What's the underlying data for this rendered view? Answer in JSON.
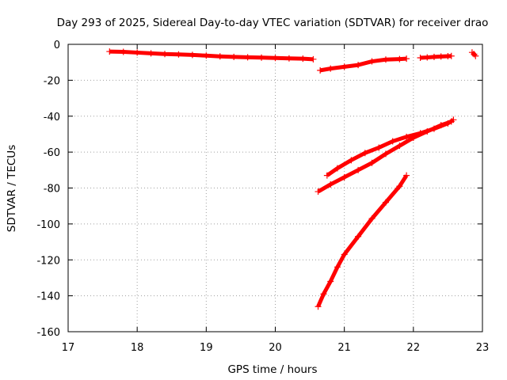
{
  "chart_data": {
    "type": "scatter",
    "title": "Day 293 of 2025, Sidereal Day-to-day VTEC variation (SDTVAR) for receiver drao",
    "xlabel": "GPS time / hours",
    "ylabel": "SDTVAR / TECUs",
    "xlim": [
      17,
      23
    ],
    "ylim": [
      -160,
      0
    ],
    "xticks": [
      "17",
      "18",
      "19",
      "20",
      "21",
      "22",
      "23"
    ],
    "yticks": [
      "0",
      "-20",
      "-40",
      "-60",
      "-80",
      "-100",
      "-120",
      "-140",
      "-160"
    ],
    "grid": true,
    "marker": "+",
    "color": "#ff0000",
    "series": [
      {
        "x": [
          17.6,
          17.8,
          18.0,
          18.2,
          18.4,
          18.6,
          18.8,
          19.0,
          19.2,
          19.4,
          19.6,
          19.8,
          20.0,
          20.2,
          20.4,
          20.55
        ],
        "y": [
          -4.0,
          -4.2,
          -4.6,
          -5.0,
          -5.4,
          -5.6,
          -5.9,
          -6.3,
          -6.7,
          -7.0,
          -7.2,
          -7.4,
          -7.6,
          -7.8,
          -8.0,
          -8.3
        ]
      },
      {
        "x": [
          20.65,
          20.8,
          21.0,
          21.2,
          21.4,
          21.6,
          21.8,
          21.9
        ],
        "y": [
          -14.5,
          -13.5,
          -12.5,
          -11.5,
          -9.5,
          -8.5,
          -8.2,
          -8.0
        ]
      },
      {
        "x": [
          22.1,
          22.2,
          22.3,
          22.4,
          22.5,
          22.55
        ],
        "y": [
          -7.5,
          -7.3,
          -7.0,
          -6.8,
          -6.6,
          -6.5
        ]
      },
      {
        "x": [
          22.85,
          22.88,
          22.9
        ],
        "y": [
          -4.5,
          -5.5,
          -6.5
        ]
      },
      {
        "x": [
          20.62,
          20.8,
          21.0,
          21.2,
          21.4,
          21.6,
          21.8,
          22.0,
          22.2,
          22.4,
          22.55
        ],
        "y": [
          -82.0,
          -78.0,
          -74.0,
          -70.0,
          -66.0,
          -61.0,
          -56.5,
          -52.0,
          -48.5,
          -45.0,
          -43.0
        ]
      },
      {
        "x": [
          20.75,
          20.9,
          21.1,
          21.3,
          21.5,
          21.7,
          21.9,
          22.1,
          22.3,
          22.5,
          22.58
        ],
        "y": [
          -73.0,
          -69.0,
          -64.5,
          -60.5,
          -57.5,
          -54.0,
          -51.5,
          -49.5,
          -47.0,
          -44.0,
          -42.0
        ]
      },
      {
        "x": [
          20.62,
          20.7,
          20.8,
          20.9,
          21.0,
          21.2,
          21.4,
          21.6,
          21.8,
          21.9
        ],
        "y": [
          -146.0,
          -139.0,
          -132.0,
          -124.0,
          -117.0,
          -107.0,
          -97.0,
          -88.0,
          -79.0,
          -73.0
        ]
      }
    ]
  }
}
